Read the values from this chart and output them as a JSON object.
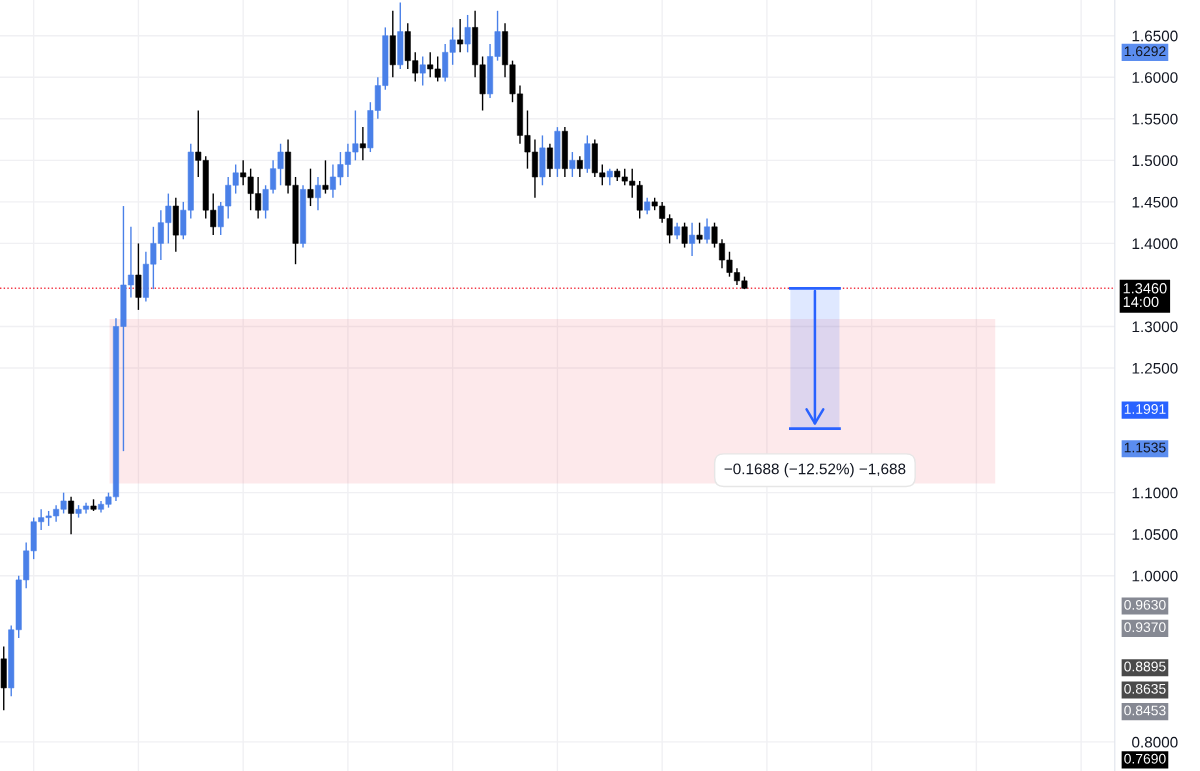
{
  "chart_data": {
    "type": "candlestick",
    "categories": [
      null,
      null,
      null,
      null,
      null,
      null,
      null,
      null,
      null,
      null,
      null,
      null,
      null,
      null,
      null,
      null,
      null,
      null,
      null,
      null,
      null,
      null,
      null,
      null,
      null,
      null,
      null,
      null,
      null,
      null,
      null,
      null,
      null,
      null,
      null,
      null,
      null,
      null,
      null,
      null,
      null,
      null,
      null,
      null,
      null,
      null,
      null,
      null,
      null,
      null,
      null,
      null,
      null,
      null,
      null,
      null,
      null,
      null,
      null,
      null,
      null,
      null,
      null,
      null,
      null,
      null,
      null,
      null,
      null,
      null,
      null,
      null,
      null,
      null,
      null,
      null,
      null,
      null,
      null,
      null,
      null,
      null,
      null,
      null,
      null,
      null,
      null,
      null,
      null,
      null,
      null,
      null,
      null,
      null,
      null,
      null,
      null,
      null,
      null,
      null,
      null,
      null,
      null,
      null,
      null,
      null,
      null,
      null,
      null,
      null,
      null,
      null,
      null,
      null,
      null,
      null,
      null,
      null,
      null,
      null,
      null,
      null,
      null,
      null,
      null,
      null,
      null,
      null,
      null,
      null,
      null,
      null,
      null,
      null,
      null,
      null,
      null,
      null,
      null,
      null,
      null,
      null,
      null,
      null,
      null,
      null,
      null,
      null,
      null
    ],
    "ohlc": [
      [
        0.9,
        0.915,
        0.838,
        0.865
      ],
      [
        0.865,
        0.94,
        0.855,
        0.935
      ],
      [
        0.935,
        1.0,
        0.925,
        0.995
      ],
      [
        0.995,
        1.04,
        0.985,
        1.03
      ],
      [
        1.03,
        1.07,
        1.02,
        1.065
      ],
      [
        1.065,
        1.08,
        1.055,
        1.07
      ],
      [
        1.07,
        1.078,
        1.06,
        1.072
      ],
      [
        1.072,
        1.085,
        1.065,
        1.08
      ],
      [
        1.08,
        1.1,
        1.075,
        1.09
      ],
      [
        1.09,
        1.095,
        1.05,
        1.075
      ],
      [
        1.075,
        1.085,
        1.07,
        1.08
      ],
      [
        1.08,
        1.088,
        1.075,
        1.084
      ],
      [
        1.084,
        1.092,
        1.078,
        1.08
      ],
      [
        1.08,
        1.09,
        1.076,
        1.086
      ],
      [
        1.086,
        1.1,
        1.082,
        1.095
      ],
      [
        1.095,
        1.31,
        1.09,
        1.3
      ],
      [
        1.3,
        1.445,
        1.15,
        1.35
      ],
      [
        1.35,
        1.42,
        1.335,
        1.362
      ],
      [
        1.362,
        1.4,
        1.32,
        1.335
      ],
      [
        1.335,
        1.39,
        1.33,
        1.375
      ],
      [
        1.375,
        1.42,
        1.345,
        1.4
      ],
      [
        1.4,
        1.44,
        1.38,
        1.425
      ],
      [
        1.425,
        1.46,
        1.4,
        1.445
      ],
      [
        1.445,
        1.455,
        1.39,
        1.41
      ],
      [
        1.41,
        1.45,
        1.405,
        1.44
      ],
      [
        1.44,
        1.52,
        1.43,
        1.51
      ],
      [
        1.51,
        1.56,
        1.48,
        1.5
      ],
      [
        1.5,
        1.505,
        1.43,
        1.44
      ],
      [
        1.44,
        1.46,
        1.41,
        1.42
      ],
      [
        1.42,
        1.45,
        1.41,
        1.445
      ],
      [
        1.445,
        1.48,
        1.43,
        1.47
      ],
      [
        1.47,
        1.495,
        1.46,
        1.485
      ],
      [
        1.485,
        1.5,
        1.47,
        1.48
      ],
      [
        1.48,
        1.49,
        1.44,
        1.46
      ],
      [
        1.46,
        1.48,
        1.43,
        1.44
      ],
      [
        1.44,
        1.47,
        1.43,
        1.465
      ],
      [
        1.465,
        1.5,
        1.46,
        1.49
      ],
      [
        1.49,
        1.52,
        1.47,
        1.51
      ],
      [
        1.51,
        1.525,
        1.46,
        1.47
      ],
      [
        1.47,
        1.48,
        1.375,
        1.4
      ],
      [
        1.4,
        1.47,
        1.395,
        1.465
      ],
      [
        1.465,
        1.49,
        1.445,
        1.455
      ],
      [
        1.455,
        1.48,
        1.44,
        1.47
      ],
      [
        1.47,
        1.5,
        1.46,
        1.465
      ],
      [
        1.465,
        1.495,
        1.455,
        1.48
      ],
      [
        1.48,
        1.51,
        1.47,
        1.495
      ],
      [
        1.495,
        1.52,
        1.48,
        1.51
      ],
      [
        1.51,
        1.56,
        1.5,
        1.52
      ],
      [
        1.52,
        1.54,
        1.5,
        1.515
      ],
      [
        1.515,
        1.57,
        1.51,
        1.56
      ],
      [
        1.56,
        1.6,
        1.55,
        1.59
      ],
      [
        1.59,
        1.66,
        1.585,
        1.65
      ],
      [
        1.65,
        1.68,
        1.6,
        1.615
      ],
      [
        1.615,
        1.69,
        1.61,
        1.655
      ],
      [
        1.655,
        1.665,
        1.61,
        1.62
      ],
      [
        1.62,
        1.63,
        1.595,
        1.605
      ],
      [
        1.605,
        1.625,
        1.59,
        1.615
      ],
      [
        1.615,
        1.63,
        1.6,
        1.61
      ],
      [
        1.61,
        1.625,
        1.595,
        1.6
      ],
      [
        1.6,
        1.64,
        1.595,
        1.63
      ],
      [
        1.63,
        1.66,
        1.615,
        1.645
      ],
      [
        1.645,
        1.67,
        1.63,
        1.64
      ],
      [
        1.64,
        1.675,
        1.63,
        1.66
      ],
      [
        1.66,
        1.68,
        1.6,
        1.615
      ],
      [
        1.615,
        1.625,
        1.56,
        1.58
      ],
      [
        1.58,
        1.64,
        1.575,
        1.625
      ],
      [
        1.625,
        1.68,
        1.62,
        1.655
      ],
      [
        1.655,
        1.665,
        1.6,
        1.615
      ],
      [
        1.615,
        1.62,
        1.57,
        1.58
      ],
      [
        1.58,
        1.59,
        1.52,
        1.53
      ],
      [
        1.53,
        1.56,
        1.49,
        1.51
      ],
      [
        1.51,
        1.525,
        1.455,
        1.48
      ],
      [
        1.48,
        1.53,
        1.47,
        1.515
      ],
      [
        1.515,
        1.52,
        1.48,
        1.49
      ],
      [
        1.49,
        1.54,
        1.48,
        1.535
      ],
      [
        1.535,
        1.54,
        1.48,
        1.49
      ],
      [
        1.49,
        1.51,
        1.48,
        1.5
      ],
      [
        1.5,
        1.505,
        1.48,
        1.49
      ],
      [
        1.49,
        1.53,
        1.485,
        1.52
      ],
      [
        1.52,
        1.525,
        1.48,
        1.485
      ],
      [
        1.485,
        1.495,
        1.47,
        1.48
      ],
      [
        1.48,
        1.49,
        1.47,
        1.487
      ],
      [
        1.487,
        1.49,
        1.475,
        1.48
      ],
      [
        1.48,
        1.49,
        1.47,
        1.475
      ],
      [
        1.475,
        1.49,
        1.455,
        1.47
      ],
      [
        1.47,
        1.475,
        1.43,
        1.44
      ],
      [
        1.44,
        1.455,
        1.435,
        1.45
      ],
      [
        1.45,
        1.455,
        1.44,
        1.445
      ],
      [
        1.445,
        1.45,
        1.425,
        1.43
      ],
      [
        1.43,
        1.435,
        1.4,
        1.41
      ],
      [
        1.41,
        1.425,
        1.405,
        1.42
      ],
      [
        1.42,
        1.425,
        1.395,
        1.4
      ],
      [
        1.4,
        1.425,
        1.385,
        1.41
      ],
      [
        1.41,
        1.425,
        1.4,
        1.405
      ],
      [
        1.405,
        1.43,
        1.4,
        1.42
      ],
      [
        1.42,
        1.425,
        1.395,
        1.4
      ],
      [
        1.4,
        1.405,
        1.37,
        1.38
      ],
      [
        1.38,
        1.39,
        1.36,
        1.365
      ],
      [
        1.365,
        1.37,
        1.35,
        1.355
      ],
      [
        1.355,
        1.36,
        1.345,
        1.346
      ],
      null,
      null,
      null,
      null,
      null,
      null,
      null,
      null,
      null,
      null,
      null,
      null,
      null,
      null,
      null,
      null,
      null,
      null,
      null,
      null,
      null,
      null,
      null,
      null,
      null,
      null,
      null,
      null,
      null,
      null,
      null,
      null,
      null,
      null,
      null,
      null,
      null,
      null,
      null,
      null,
      null,
      null,
      null,
      null,
      null,
      null,
      null,
      null,
      null
    ],
    "colors": [
      "#000000",
      "#4a80e8",
      "#4a80e8",
      "#4a80e8",
      "#4a80e8",
      "#4a80e8",
      "#4a80e8",
      "#4a80e8",
      "#4a80e8",
      "#000000",
      "#4a80e8",
      "#4a80e8",
      "#000000",
      "#4a80e8",
      "#4a80e8",
      "#4a80e8",
      "#4a80e8",
      "#4a80e8",
      "#000000",
      "#4a80e8",
      "#4a80e8",
      "#4a80e8",
      "#4a80e8",
      "#000000",
      "#4a80e8",
      "#4a80e8",
      "#000000",
      "#000000",
      "#000000",
      "#4a80e8",
      "#4a80e8",
      "#4a80e8",
      "#000000",
      "#000000",
      "#000000",
      "#4a80e8",
      "#4a80e8",
      "#4a80e8",
      "#000000",
      "#000000",
      "#4a80e8",
      "#000000",
      "#4a80e8",
      "#000000",
      "#4a80e8",
      "#4a80e8",
      "#4a80e8",
      "#4a80e8",
      "#000000",
      "#4a80e8",
      "#4a80e8",
      "#4a80e8",
      "#000000",
      "#4a80e8",
      "#000000",
      "#000000",
      "#4a80e8",
      "#000000",
      "#000000",
      "#4a80e8",
      "#4a80e8",
      "#000000",
      "#4a80e8",
      "#000000",
      "#000000",
      "#4a80e8",
      "#4a80e8",
      "#000000",
      "#000000",
      "#000000",
      "#000000",
      "#000000",
      "#4a80e8",
      "#000000",
      "#4a80e8",
      "#000000",
      "#4a80e8",
      "#000000",
      "#4a80e8",
      "#000000",
      "#000000",
      "#4a80e8",
      "#000000",
      "#000000",
      "#000000",
      "#000000",
      "#4a80e8",
      "#000000",
      "#000000",
      "#000000",
      "#4a80e8",
      "#000000",
      "#4a80e8",
      "#000000",
      "#4a80e8",
      "#000000",
      "#000000",
      "#000000",
      "#000000",
      "#000000",
      null,
      null,
      null,
      null,
      null,
      null,
      null,
      null,
      null,
      null,
      null,
      null,
      null,
      null,
      null,
      null,
      null,
      null,
      null,
      null,
      null,
      null,
      null,
      null,
      null,
      null,
      null,
      null,
      null,
      null,
      null,
      null,
      null,
      null,
      null,
      null,
      null,
      null,
      null,
      null,
      null,
      null,
      null,
      null,
      null,
      null,
      null,
      null,
      null
    ],
    "ylim": [
      0.765,
      1.693
    ],
    "yticks": [
      {
        "value": 0.8,
        "label": "0.8000"
      },
      {
        "value": 1.0,
        "label": "1.0000"
      },
      {
        "value": 1.05,
        "label": "1.0500"
      },
      {
        "value": 1.1,
        "label": "1.1000"
      },
      {
        "value": 1.25,
        "label": "1.2500"
      },
      {
        "value": 1.3,
        "label": "1.3000"
      },
      {
        "value": 1.4,
        "label": "1.4000"
      },
      {
        "value": 1.45,
        "label": "1.4500"
      },
      {
        "value": 1.5,
        "label": "1.5000"
      },
      {
        "value": 1.55,
        "label": "1.5500"
      },
      {
        "value": 1.6,
        "label": "1.6000"
      },
      {
        "value": 1.65,
        "label": "1.6500"
      }
    ],
    "tick_labels": "y",
    "grid": true,
    "ref_lines": [
      {
        "axis": "y",
        "value": 1.346,
        "label": "1.3460\n14:00",
        "color": "#f23645",
        "line_style": "dotted"
      }
    ],
    "bands": [
      {
        "axis": "y",
        "from": 1.112,
        "to": 1.308,
        "color": "#f23645"
      },
      {
        "axis": "y",
        "from": 1.1772,
        "to": 1.346,
        "label": "−0.1688 (−12.52%) −1,688",
        "color": "#2962ff"
      }
    ],
    "annotations": [
      "1.6292",
      "1.1991",
      "1.1535",
      "0.9630",
      "0.9370",
      "0.8895",
      "0.8635",
      "0.8453",
      "0.7690"
    ]
  }
}
